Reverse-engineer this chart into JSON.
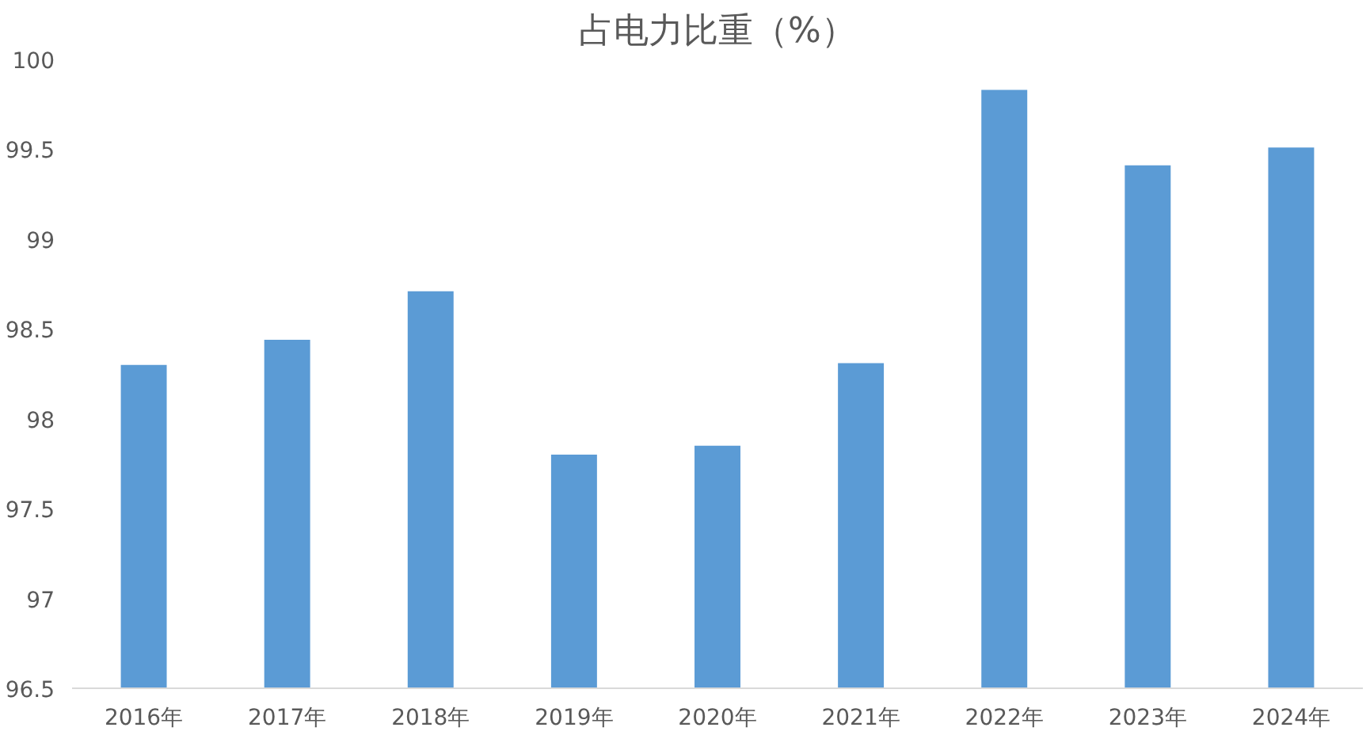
{
  "chart_data": {
    "type": "bar",
    "title": "占电力比重（%）",
    "categories": [
      "2016年",
      "2017年",
      "2018年",
      "2019年",
      "2020年",
      "2021年",
      "2022年",
      "2023年",
      "2024年"
    ],
    "values": [
      98.3,
      98.44,
      98.71,
      97.8,
      97.85,
      98.31,
      99.83,
      99.41,
      99.51
    ],
    "color": "#5b9bd5",
    "ylim": [
      96.5,
      100
    ],
    "yticks": [
      96.5,
      97,
      97.5,
      98,
      98.5,
      99,
      99.5,
      100
    ],
    "grid": false
  }
}
